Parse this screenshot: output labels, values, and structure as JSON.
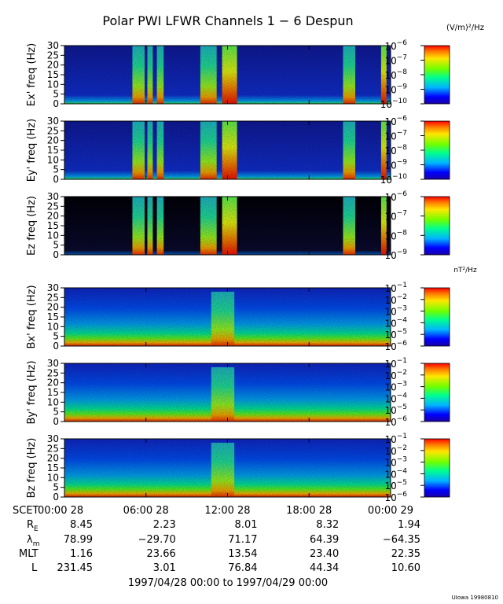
{
  "chart_data": {
    "type": "heatmap",
    "title": "Polar PWI LFWR Channels 1 − 6 Despun",
    "x_range_hours": [
      0,
      24
    ],
    "panels": [
      {
        "id": "ex",
        "ylabel": "Ex' freq (Hz)",
        "ylim": [
          0,
          30
        ],
        "y_ticks": [
          0,
          5,
          10,
          15,
          20,
          25,
          30
        ],
        "colorbar": {
          "unit": "(V/m)²/Hz",
          "tick_exponents": [
            -6,
            -7,
            -8,
            -9,
            -10
          ],
          "range_exp": [
            -10,
            -6
          ]
        },
        "background": "dark-blue",
        "bursts": [
          {
            "start": 5.0,
            "end": 5.9,
            "level": "high",
            "top_hz": 30
          },
          {
            "start": 6.1,
            "end": 6.5,
            "level": "high",
            "top_hz": 30
          },
          {
            "start": 6.8,
            "end": 7.3,
            "level": "high",
            "top_hz": 30
          },
          {
            "start": 10.0,
            "end": 11.2,
            "level": "high",
            "top_hz": 30
          },
          {
            "start": 11.6,
            "end": 12.7,
            "level": "very-high",
            "top_hz": 30
          },
          {
            "start": 20.5,
            "end": 21.4,
            "level": "high",
            "top_hz": 30
          },
          {
            "start": 23.3,
            "end": 23.7,
            "level": "very-high",
            "top_hz": 30
          }
        ]
      },
      {
        "id": "ey",
        "ylabel": "Ey' freq (Hz)",
        "ylim": [
          0,
          30
        ],
        "y_ticks": [
          0,
          5,
          10,
          15,
          20,
          25,
          30
        ],
        "colorbar": {
          "unit": "",
          "tick_exponents": [
            -6,
            -7,
            -8,
            -9,
            -10
          ],
          "range_exp": [
            -10,
            -6
          ]
        },
        "background": "dark-blue",
        "bursts": [
          {
            "start": 5.0,
            "end": 5.9,
            "level": "high",
            "top_hz": 30
          },
          {
            "start": 6.1,
            "end": 6.5,
            "level": "high",
            "top_hz": 30
          },
          {
            "start": 6.8,
            "end": 7.3,
            "level": "high",
            "top_hz": 30
          },
          {
            "start": 10.0,
            "end": 11.2,
            "level": "high",
            "top_hz": 30
          },
          {
            "start": 11.6,
            "end": 12.7,
            "level": "very-high",
            "top_hz": 30
          },
          {
            "start": 20.5,
            "end": 21.4,
            "level": "high",
            "top_hz": 30
          },
          {
            "start": 23.3,
            "end": 23.7,
            "level": "very-high",
            "top_hz": 30
          }
        ]
      },
      {
        "id": "ez",
        "ylabel": "Ez freq (Hz)",
        "ylim": [
          0,
          30
        ],
        "y_ticks": [
          0,
          5,
          10,
          15,
          20,
          25,
          30
        ],
        "colorbar": {
          "unit": "",
          "tick_exponents": [
            -6,
            -7,
            -8,
            -9
          ],
          "range_exp": [
            -9,
            -6
          ]
        },
        "background": "black",
        "bursts": [
          {
            "start": 5.0,
            "end": 5.9,
            "level": "high",
            "top_hz": 30
          },
          {
            "start": 6.1,
            "end": 6.5,
            "level": "high",
            "top_hz": 30
          },
          {
            "start": 6.8,
            "end": 7.3,
            "level": "high",
            "top_hz": 30
          },
          {
            "start": 10.0,
            "end": 11.2,
            "level": "high",
            "top_hz": 30
          },
          {
            "start": 11.6,
            "end": 12.7,
            "level": "very-high",
            "top_hz": 30
          },
          {
            "start": 20.5,
            "end": 21.4,
            "level": "high",
            "top_hz": 30
          },
          {
            "start": 23.3,
            "end": 23.7,
            "level": "very-high",
            "top_hz": 30
          }
        ]
      },
      {
        "id": "bx",
        "ylabel": "Bx' freq (Hz)",
        "ylim": [
          0,
          30
        ],
        "y_ticks": [
          0,
          5,
          10,
          15,
          20,
          25,
          30
        ],
        "colorbar": {
          "unit": "nT²/Hz",
          "tick_exponents": [
            -1,
            -2,
            -3,
            -4,
            -5,
            -6
          ],
          "range_exp": [
            -6,
            -1
          ]
        },
        "background": "blue-green",
        "bursts": [
          {
            "start": 10.8,
            "end": 12.5,
            "level": "high",
            "top_hz": 28
          }
        ]
      },
      {
        "id": "by",
        "ylabel": "By' freq (Hz)",
        "ylim": [
          0,
          30
        ],
        "y_ticks": [
          0,
          5,
          10,
          15,
          20,
          25,
          30
        ],
        "colorbar": {
          "unit": "",
          "tick_exponents": [
            -1,
            -2,
            -3,
            -4,
            -5,
            -6
          ],
          "range_exp": [
            -6,
            -1
          ]
        },
        "background": "blue-green",
        "bursts": [
          {
            "start": 10.8,
            "end": 12.5,
            "level": "high",
            "top_hz": 28
          }
        ]
      },
      {
        "id": "bz",
        "ylabel": "Bz freq (Hz)",
        "ylim": [
          0,
          30
        ],
        "y_ticks": [
          0,
          5,
          10,
          15,
          20,
          25,
          30
        ],
        "colorbar": {
          "unit": "",
          "tick_exponents": [
            -1,
            -2,
            -3,
            -4,
            -5,
            -6
          ],
          "range_exp": [
            -6,
            -1
          ]
        },
        "background": "blue-green",
        "bursts": [
          {
            "start": 10.8,
            "end": 12.5,
            "level": "high",
            "top_hz": 28
          }
        ]
      }
    ],
    "ephemeris": {
      "labels": {
        "scet": "SCET",
        "re_main": "R",
        "re_sub": "E",
        "lam_main": "λ",
        "lam_sub": "m",
        "mlt": "MLT",
        "l": "L"
      },
      "columns": [
        {
          "scet": "00:00 28",
          "re": "8.45",
          "lambda": "78.99",
          "mlt": "1.16",
          "l": "231.45"
        },
        {
          "scet": "06:00 28",
          "re": "2.23",
          "lambda": "−29.70",
          "mlt": "23.66",
          "l": "3.01"
        },
        {
          "scet": "12:00 28",
          "re": "8.01",
          "lambda": "71.17",
          "mlt": "13.54",
          "l": "76.84"
        },
        {
          "scet": "18:00 28",
          "re": "8.32",
          "lambda": "64.39",
          "mlt": "23.40",
          "l": "44.34"
        },
        {
          "scet": "00:00 29",
          "re": "1.94",
          "lambda": "−64.35",
          "mlt": "22.35",
          "l": "10.60"
        }
      ]
    },
    "date_range": "1997/04/28 00:00 to 1997/04/29 00:00",
    "credit": "UIowa 19980810"
  }
}
